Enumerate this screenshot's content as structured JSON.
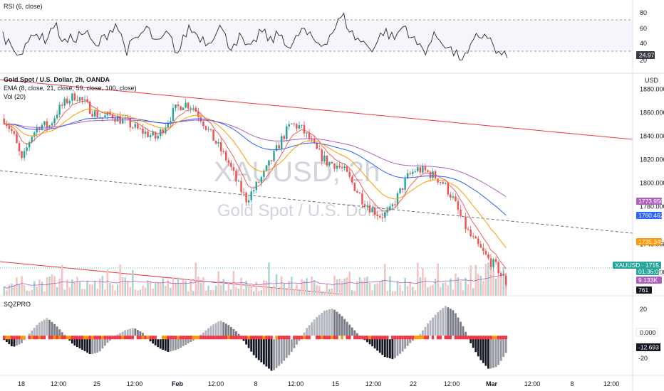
{
  "panels": {
    "rsi": {
      "label": "RSI (6, close)",
      "levels": [
        20.0,
        40.0,
        60.0,
        80.0
      ],
      "last_value": "24.97",
      "last_color": "#363a45"
    },
    "main": {
      "title": "Gold Spot / U.S. Dollar, 2h, OANDA",
      "ema_label": "EMA (8, close, 21, close, 59, close, 100, close)",
      "vol_label": "Vol (20)",
      "currency": "USD",
      "watermark_symbol": "XAUUSD, 2h",
      "watermark_name": "Gold Spot / U.S. Dollar",
      "price_ticks": [
        1880.0,
        1860.0,
        1840.0,
        1820.0,
        1800.0,
        1780.0,
        1748.0,
        1724.0
      ],
      "tags": [
        {
          "text": "1773.956",
          "color": "#b05fc1"
        },
        {
          "text": "1760.462",
          "color": "#2962ff"
        },
        {
          "text": "1735.345",
          "color": "#ff9800"
        },
        {
          "text": "XAUUSD · 1715.168",
          "color": "#26a69a"
        },
        {
          "text": "01:36:02",
          "color": "#26a69a"
        },
        {
          "text": "9.133K",
          "color": "#b05fc1"
        },
        {
          "text": "761",
          "color": "#131722"
        }
      ]
    },
    "sqz": {
      "label": "SQZPRO",
      "ticks": [
        20.0,
        0.0,
        -20.0
      ],
      "last_value": "-12.693",
      "zero_tag": "0.000"
    }
  },
  "x_axis": {
    "ticks": [
      "18",
      "12:00",
      "25",
      "12:00",
      "Feb",
      "12:00",
      "8",
      "12:00",
      "15",
      "12:00",
      "22",
      "12:00",
      "Mar",
      "12:00",
      "8",
      "12:00"
    ]
  },
  "colors": {
    "up": "#26a69a",
    "down": "#ef5350",
    "ema8": "#ef5350",
    "ema21": "#ff9800",
    "ema59": "#2962ff",
    "ema100": "#b05fc1",
    "trend": "#f23645"
  },
  "chart_data": [
    {
      "type": "line",
      "title": "Gold Spot / U.S. Dollar, 2h, OANDA",
      "series": [
        {
          "name": "XAUUSD",
          "values": [
            1855,
            1842,
            1818,
            1840,
            1850,
            1848,
            1862,
            1870,
            1875,
            1868,
            1860,
            1856,
            1858,
            1854,
            1850,
            1845,
            1842,
            1838,
            1850,
            1862,
            1868,
            1866,
            1855,
            1842,
            1830,
            1818,
            1800,
            1786,
            1796,
            1808,
            1822,
            1838,
            1850,
            1848,
            1838,
            1826,
            1818,
            1816,
            1810,
            1798,
            1786,
            1778,
            1772,
            1775,
            1790,
            1805,
            1812,
            1810,
            1806,
            1800,
            1788,
            1770,
            1755,
            1745,
            1735,
            1728,
            1715
          ]
        }
      ],
      "ylim": [
        1704,
        1893
      ],
      "last_value": 1715.168
    },
    {
      "type": "line",
      "title": "RSI (6, close)",
      "series": [
        {
          "name": "RSI",
          "values": [
            55,
            40,
            30,
            62,
            48,
            70,
            45,
            52,
            60,
            38,
            55,
            72,
            35,
            50,
            65,
            42,
            58,
            30,
            66,
            55,
            45,
            70,
            40,
            52,
            33,
            62,
            48,
            58,
            36,
            64,
            50,
            42,
            60,
            82,
            55,
            45,
            38,
            62,
            50,
            70,
            46,
            35,
            55,
            44,
            28,
            25,
            52,
            58,
            30,
            24.97
          ]
        }
      ],
      "ylim": [
        10,
        95
      ]
    },
    {
      "type": "bar",
      "title": "SQZPRO",
      "series": [
        {
          "name": "SQZPRO",
          "values": [
            -2,
            -8,
            -5,
            4,
            12,
            16,
            10,
            2,
            -6,
            -10,
            -14,
            -12,
            -4,
            2,
            6,
            8,
            4,
            -4,
            -9,
            -12,
            -10,
            -6,
            -2,
            4,
            10,
            14,
            10,
            4,
            -6,
            -16,
            -22,
            -28,
            -22,
            -14,
            -4,
            8,
            16,
            22,
            24,
            18,
            10,
            2,
            -4,
            -10,
            -16,
            -18,
            -12,
            -4,
            2,
            12,
            20,
            26,
            22,
            10,
            -6,
            -18,
            -26,
            -24,
            -12.693
          ]
        }
      ],
      "ylim": [
        -30,
        32
      ],
      "last_value": -12.693
    }
  ]
}
